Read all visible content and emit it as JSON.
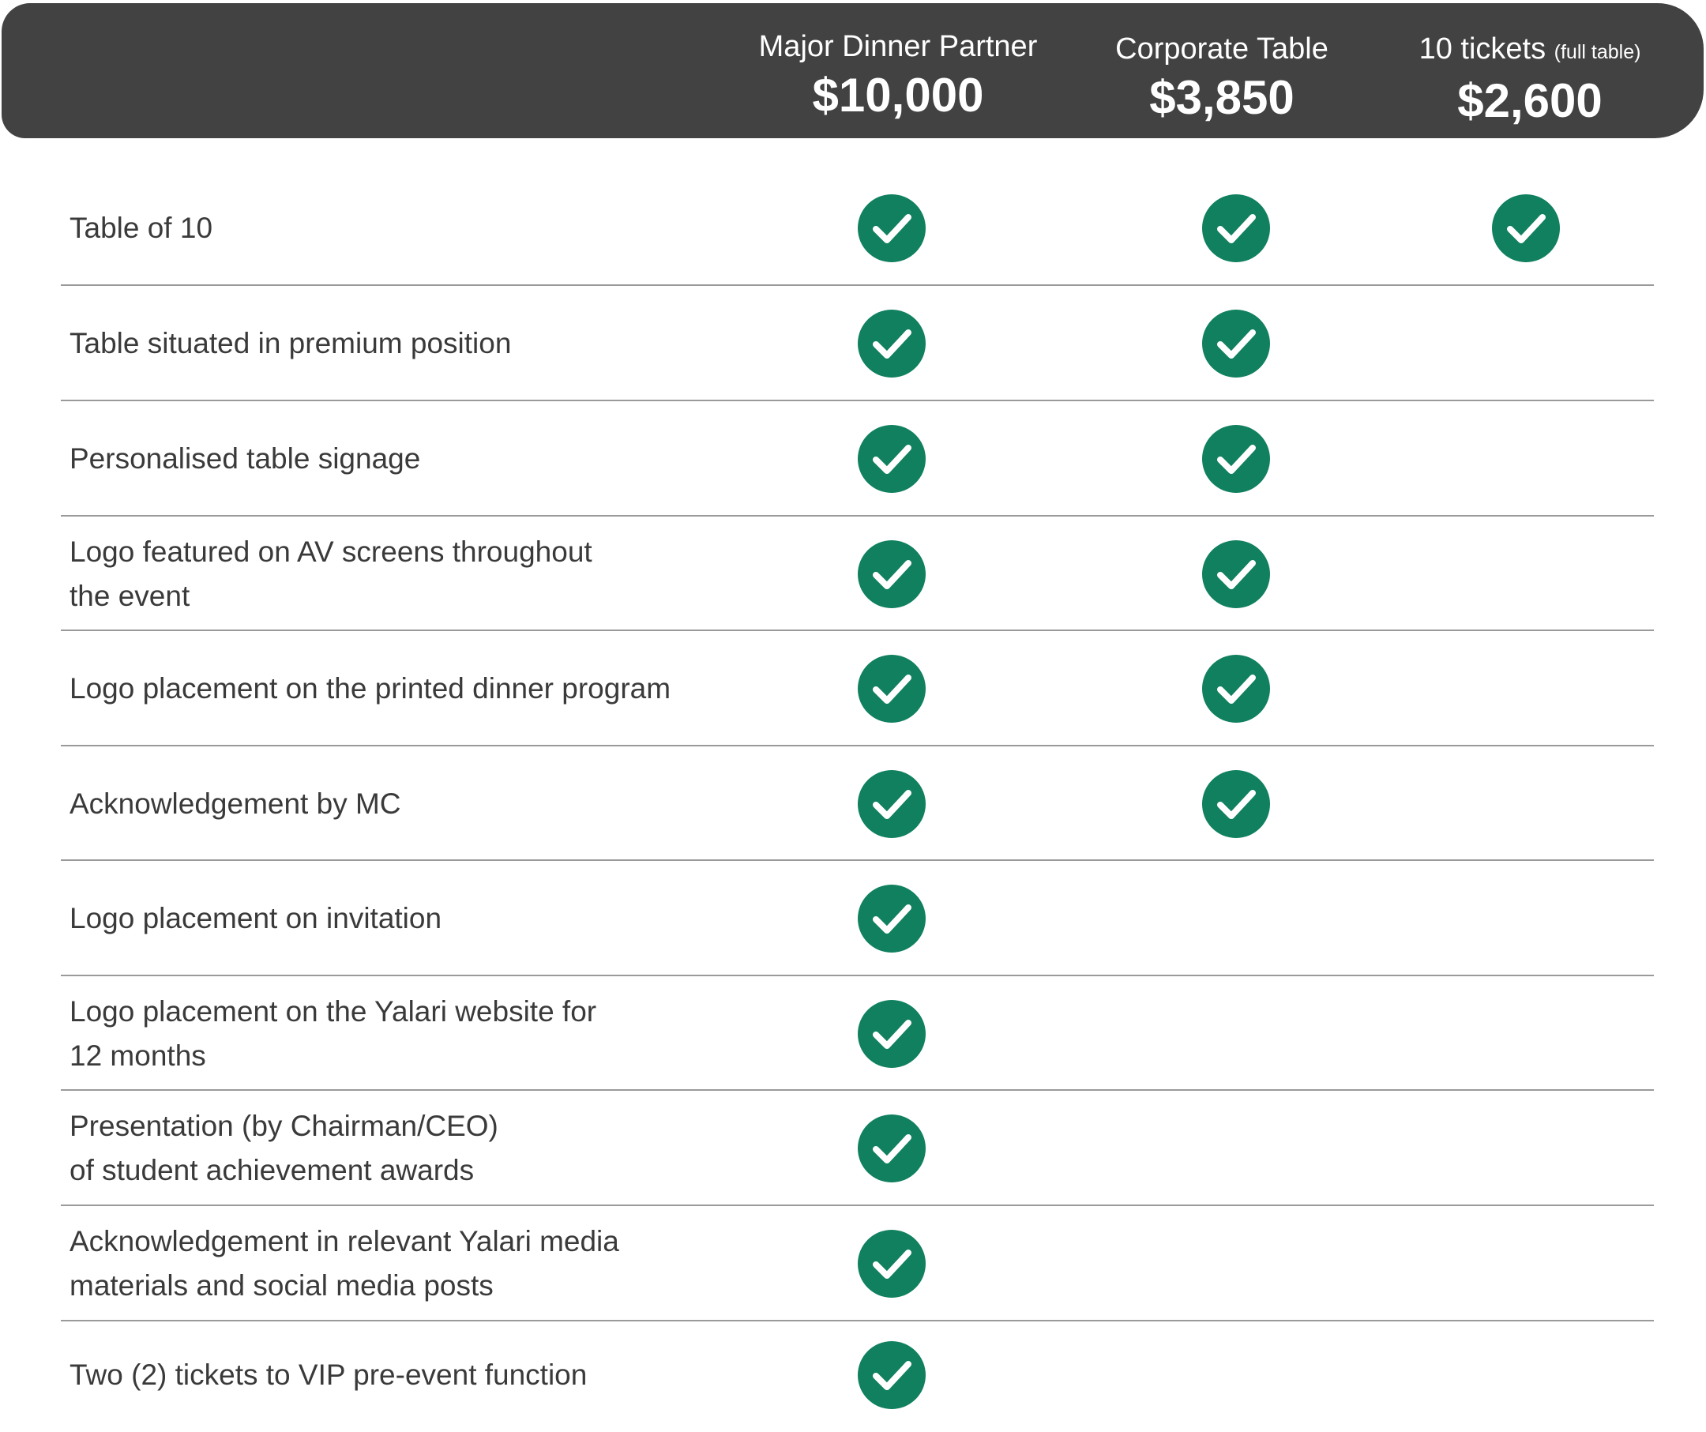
{
  "header": {
    "tiers": [
      {
        "name": "Major Dinner Partner",
        "note": "",
        "price": "$10,000"
      },
      {
        "name": "Corporate Table",
        "note": "",
        "price": "$3,850"
      },
      {
        "name": "10 tickets",
        "note": "(full table)",
        "price": "$2,600"
      }
    ]
  },
  "colors": {
    "header_bg": "#424242",
    "check_green": "#10805e",
    "divider": "#9a9a9a"
  },
  "icons": {
    "check": "check-circle-icon"
  },
  "rows": [
    {
      "label": "Table of 10",
      "includes": [
        true,
        true,
        true
      ]
    },
    {
      "label": "Table situated in premium position",
      "includes": [
        true,
        true,
        false
      ]
    },
    {
      "label": "Personalised table signage",
      "includes": [
        true,
        true,
        false
      ]
    },
    {
      "label": "Logo featured on AV screens throughout\nthe event",
      "includes": [
        true,
        true,
        false
      ]
    },
    {
      "label": "Logo placement on the printed dinner program",
      "includes": [
        true,
        true,
        false
      ]
    },
    {
      "label": "Acknowledgement by MC",
      "includes": [
        true,
        true,
        false
      ]
    },
    {
      "label": "Logo placement on invitation",
      "includes": [
        true,
        false,
        false
      ]
    },
    {
      "label": "Logo placement on the Yalari website for\n12 months",
      "includes": [
        true,
        false,
        false
      ]
    },
    {
      "label": "Presentation (by Chairman/CEO)\nof student achievement awards",
      "includes": [
        true,
        false,
        false
      ]
    },
    {
      "label": "Acknowledgement in relevant Yalari media\nmaterials and social media posts",
      "includes": [
        true,
        false,
        false
      ]
    },
    {
      "label": "Two (2) tickets to VIP pre-event function",
      "includes": [
        true,
        false,
        false
      ]
    }
  ]
}
